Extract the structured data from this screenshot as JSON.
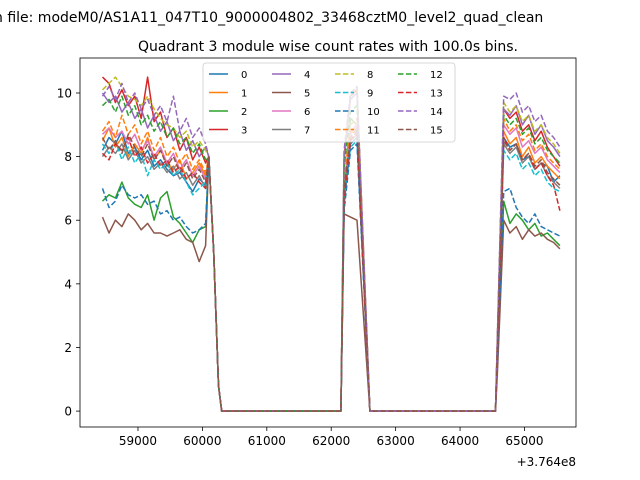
{
  "header": {
    "suptitle": "n file: modeM0/AS1A11_047T10_9000004802_33468cztM0_level2_quad_clean",
    "title": "Quadrant 3 module wise count rates with 100.0s bins."
  },
  "axes": {
    "x_offset_label": "+3.764e8",
    "x_tick_labels": [
      "59000",
      "60000",
      "61000",
      "62000",
      "63000",
      "64000",
      "65000"
    ],
    "y_tick_labels": [
      "0",
      "2",
      "4",
      "6",
      "8",
      "10"
    ]
  },
  "chart_data": {
    "type": "line",
    "title": "Quadrant 3 module wise count rates with 100.0s bins.",
    "xlabel": "",
    "ylabel": "",
    "x_offset": 376400000,
    "xlim": [
      58100,
      65800
    ],
    "ylim": [
      -0.5,
      11.1
    ],
    "xticks": [
      59000,
      60000,
      61000,
      62000,
      63000,
      64000,
      65000
    ],
    "yticks": [
      0,
      2,
      4,
      6,
      8,
      10
    ],
    "legend_position": "upper-center",
    "segments": [
      {
        "x_start": 58450,
        "x_end": 60050
      },
      {
        "x_start": 60100,
        "x_end": 60250,
        "tail": [
          8.0,
          5.0,
          0.8
        ]
      },
      {
        "x_start": 60300,
        "x_end": 62150,
        "zero": true
      },
      {
        "x_start": 62150,
        "x_end": 62600,
        "spike": true
      },
      {
        "x_start": 62600,
        "x_end": 64550,
        "zero": true
      },
      {
        "x_start": 64550,
        "x_end": 65550
      }
    ],
    "series": [
      {
        "name": "0",
        "color": "#1f77b4",
        "style": "solid",
        "seg1": [
          8.2,
          8.6,
          8.4,
          8.8,
          8.1,
          8.3,
          7.9,
          8.2,
          7.7,
          7.9,
          7.6,
          7.4,
          7.5,
          7.2,
          6.9,
          7.3,
          7.1
        ],
        "spike": [
          6.5,
          8.4,
          8.6
        ],
        "seg3": [
          1.8,
          8.6,
          8.3,
          8.4,
          7.9,
          8.0,
          7.6,
          7.8,
          7.7,
          7.2,
          7.4
        ]
      },
      {
        "name": "1",
        "color": "#ff7f0e",
        "style": "solid",
        "seg1": [
          8.5,
          8.9,
          8.3,
          8.6,
          8.0,
          8.4,
          8.1,
          8.6,
          7.9,
          8.2,
          7.8,
          7.6,
          7.9,
          7.3,
          7.5,
          7.8,
          7.4
        ],
        "spike": [
          6.8,
          8.7,
          9.0
        ],
        "seg3": [
          1.9,
          8.8,
          8.4,
          8.6,
          8.0,
          8.3,
          7.8,
          8.0,
          7.7,
          7.5,
          7.3
        ]
      },
      {
        "name": "2",
        "color": "#2ca02c",
        "style": "solid",
        "seg1": [
          6.6,
          6.8,
          6.7,
          7.2,
          6.7,
          6.5,
          6.4,
          6.8,
          6.0,
          6.7,
          6.9,
          6.1,
          5.9,
          5.6,
          5.3,
          5.7,
          5.8
        ],
        "spike": [
          6.8,
          9.2,
          9.0
        ],
        "seg3": [
          1.5,
          6.6,
          5.9,
          6.2,
          6.0,
          5.7,
          5.9,
          5.5,
          5.6,
          5.4,
          5.2
        ]
      },
      {
        "name": "3",
        "color": "#d62728",
        "style": "solid",
        "seg1": [
          10.5,
          10.3,
          9.7,
          10.1,
          9.6,
          9.9,
          9.2,
          10.5,
          9.1,
          9.4,
          8.6,
          8.9,
          8.2,
          8.6,
          7.9,
          8.3,
          7.8
        ],
        "spike": [
          8.0,
          9.9,
          10.1
        ],
        "seg3": [
          2.3,
          9.5,
          9.2,
          9.4,
          8.8,
          9.0,
          8.5,
          8.8,
          8.3,
          8.0,
          7.7
        ]
      },
      {
        "name": "4",
        "color": "#9467bd",
        "style": "solid",
        "seg1": [
          10.0,
          9.7,
          9.9,
          9.4,
          9.7,
          9.2,
          9.5,
          8.9,
          9.3,
          8.8,
          9.1,
          8.5,
          8.8,
          8.2,
          8.5,
          8.0,
          8.3
        ],
        "spike": [
          7.9,
          9.8,
          10.0
        ],
        "seg3": [
          2.2,
          9.5,
          9.3,
          9.6,
          9.0,
          9.3,
          8.7,
          9.0,
          8.5,
          8.3,
          8.0
        ]
      },
      {
        "name": "5",
        "color": "#8c564b",
        "style": "solid",
        "seg1": [
          6.1,
          5.6,
          6.0,
          5.8,
          6.2,
          6.0,
          5.7,
          5.9,
          5.6,
          5.6,
          5.5,
          5.6,
          5.7,
          5.4,
          5.3,
          4.7,
          5.2
        ],
        "spike": [
          6.2,
          6.1,
          6.0
        ],
        "seg3": [
          1.2,
          6.0,
          5.6,
          5.8,
          5.4,
          5.7,
          5.5,
          5.6,
          5.4,
          5.3,
          5.1
        ]
      },
      {
        "name": "6",
        "color": "#e377c2",
        "style": "solid",
        "seg1": [
          8.7,
          8.9,
          8.6,
          8.8,
          8.4,
          8.7,
          8.2,
          8.5,
          8.0,
          8.3,
          7.8,
          8.1,
          7.6,
          7.9,
          7.4,
          7.7,
          7.3
        ],
        "spike": [
          7.1,
          8.8,
          9.0
        ],
        "seg3": [
          2.0,
          9.0,
          8.7,
          8.9,
          8.3,
          8.5,
          8.1,
          8.3,
          7.9,
          7.7,
          7.5
        ]
      },
      {
        "name": "7",
        "color": "#7f7f7f",
        "style": "solid",
        "seg1": [
          8.0,
          8.3,
          8.1,
          8.4,
          7.9,
          8.2,
          7.8,
          8.0,
          7.6,
          7.8,
          7.5,
          7.7,
          7.3,
          7.5,
          7.1,
          7.4,
          7.0
        ],
        "spike": [
          6.9,
          8.5,
          8.7
        ],
        "seg3": [
          1.8,
          8.4,
          8.1,
          8.3,
          7.8,
          8.0,
          7.6,
          7.8,
          7.4,
          7.2,
          7.0
        ]
      },
      {
        "name": "8",
        "color": "#bcbd22",
        "style": "dashed",
        "seg1": [
          10.1,
          10.3,
          10.5,
          10.2,
          9.9,
          9.8,
          9.6,
          9.9,
          9.5,
          9.2,
          9.0,
          8.9,
          8.6,
          8.8,
          8.3,
          8.5,
          8.2
        ],
        "spike": [
          8.1,
          9.9,
          10.2
        ],
        "seg3": [
          2.3,
          9.7,
          9.4,
          9.6,
          9.1,
          9.3,
          8.8,
          9.0,
          8.6,
          8.4,
          8.1
        ]
      },
      {
        "name": "9",
        "color": "#17becf",
        "style": "dashed",
        "seg1": [
          8.4,
          8.1,
          8.5,
          7.9,
          8.3,
          7.8,
          8.1,
          7.4,
          7.9,
          7.6,
          7.8,
          7.4,
          7.6,
          7.2,
          6.8,
          7.0,
          7.2
        ],
        "spike": [
          6.6,
          8.3,
          8.5
        ],
        "seg3": [
          1.8,
          8.2,
          7.9,
          8.1,
          7.6,
          7.8,
          7.4,
          7.6,
          7.2,
          7.0,
          6.9
        ]
      },
      {
        "name": "10",
        "color": "#1f77b4",
        "style": "dashed",
        "seg1": [
          7.0,
          6.4,
          6.6,
          7.1,
          6.8,
          6.7,
          6.8,
          6.5,
          6.6,
          6.2,
          6.3,
          6.0,
          6.1,
          5.8,
          5.6,
          5.7,
          5.9
        ],
        "spike": [
          6.3,
          8.2,
          8.4
        ],
        "seg3": [
          1.6,
          6.9,
          7.0,
          6.4,
          6.1,
          5.9,
          6.2,
          5.8,
          5.7,
          5.6,
          5.5
        ]
      },
      {
        "name": "11",
        "color": "#ff7f0e",
        "style": "dashed",
        "seg1": [
          8.8,
          9.1,
          8.6,
          9.3,
          8.7,
          9.0,
          8.4,
          8.8,
          8.2,
          8.6,
          8.0,
          8.3,
          7.8,
          8.1,
          7.6,
          7.9,
          7.5
        ],
        "spike": [
          7.3,
          9.0,
          9.2
        ],
        "seg3": [
          2.1,
          9.2,
          8.8,
          9.0,
          8.5,
          8.7,
          8.2,
          8.4,
          8.0,
          7.8,
          7.6
        ]
      },
      {
        "name": "12",
        "color": "#2ca02c",
        "style": "dashed",
        "seg1": [
          9.6,
          9.8,
          9.4,
          9.9,
          9.3,
          9.6,
          9.0,
          9.3,
          8.8,
          9.1,
          8.6,
          8.9,
          8.4,
          8.6,
          8.1,
          8.4,
          7.9
        ],
        "spike": [
          7.7,
          9.4,
          9.6
        ],
        "seg3": [
          2.2,
          9.3,
          9.0,
          9.2,
          8.7,
          8.9,
          8.4,
          8.6,
          8.2,
          8.0,
          7.8
        ]
      },
      {
        "name": "13",
        "color": "#d62728",
        "style": "dashed",
        "seg1": [
          8.1,
          7.9,
          8.4,
          8.2,
          8.6,
          8.0,
          8.3,
          7.8,
          8.1,
          7.7,
          7.9,
          7.5,
          7.7,
          7.3,
          7.5,
          7.2,
          7.0
        ],
        "spike": [
          6.7,
          8.5,
          8.8
        ],
        "seg3": [
          1.9,
          8.6,
          8.2,
          8.4,
          7.9,
          8.1,
          7.6,
          7.8,
          7.4,
          7.1,
          6.3
        ]
      },
      {
        "name": "14",
        "color": "#9467bd",
        "style": "dashed",
        "seg1": [
          9.9,
          10.2,
          9.8,
          10.3,
          9.7,
          10.0,
          9.5,
          9.8,
          9.3,
          9.6,
          9.1,
          9.9,
          8.8,
          9.2,
          8.6,
          8.9,
          8.4
        ],
        "spike": [
          8.2,
          10.0,
          10.2
        ],
        "seg3": [
          2.4,
          9.9,
          9.8,
          10.0,
          9.4,
          9.6,
          9.1,
          9.3,
          8.8,
          8.6,
          8.3
        ]
      },
      {
        "name": "15",
        "color": "#8c564b",
        "style": "dashed",
        "seg1": [
          8.6,
          8.2,
          8.5,
          8.1,
          8.7,
          8.3,
          8.0,
          8.4,
          7.9,
          8.2,
          7.7,
          8.0,
          7.5,
          7.8,
          7.3,
          7.6,
          7.2
        ],
        "spike": [
          7.0,
          8.6,
          8.9
        ],
        "seg3": [
          2.0,
          8.5,
          8.2,
          8.4,
          7.9,
          8.1,
          7.7,
          7.9,
          7.5,
          7.3,
          7.1
        ]
      }
    ]
  }
}
